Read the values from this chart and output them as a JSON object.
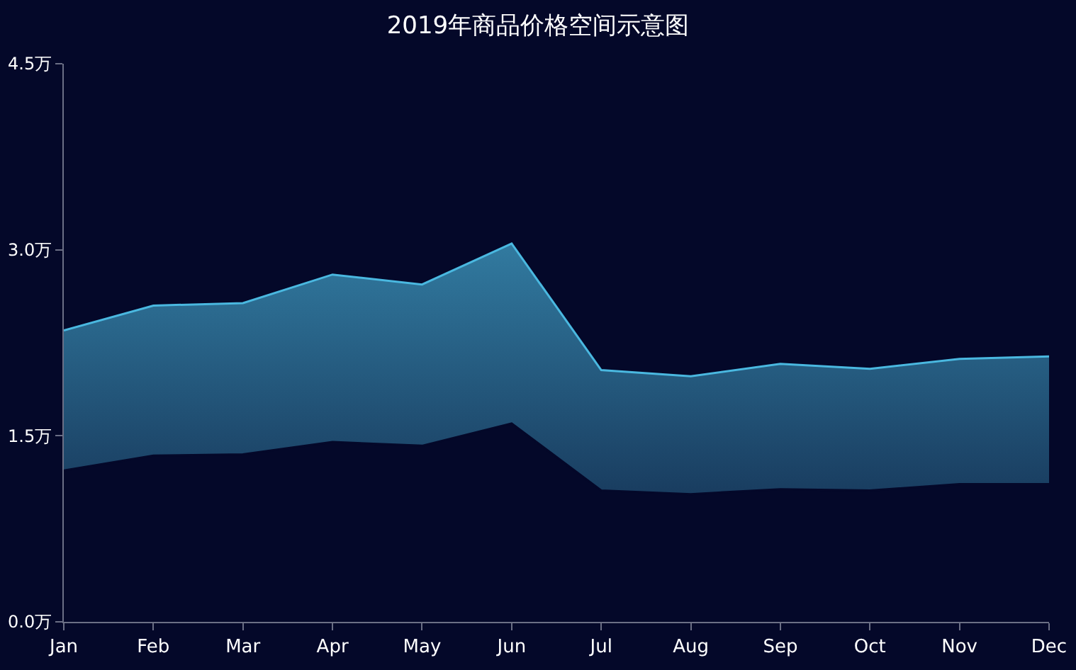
{
  "chart_data": {
    "type": "area",
    "title": "2019年商品价格空间示意图",
    "stacked": true,
    "categories": [
      "Jan",
      "Feb",
      "Mar",
      "Apr",
      "May",
      "Jun",
      "Jul",
      "Aug",
      "Sep",
      "Oct",
      "Nov",
      "Dec"
    ],
    "series": [
      {
        "color": "#040829",
        "values": [
          1.22,
          1.34,
          1.35,
          1.45,
          1.42,
          1.6,
          1.06,
          1.03,
          1.07,
          1.06,
          1.11,
          1.11
        ]
      },
      {
        "color": "#4ab8e0",
        "values": [
          1.13,
          1.21,
          1.22,
          1.35,
          1.3,
          1.45,
          0.97,
          0.95,
          1.01,
          0.98,
          1.01,
          1.03
        ]
      }
    ],
    "ylim": [
      0,
      4.5
    ],
    "yticks": [
      {
        "value": 0,
        "label": "0.0万"
      },
      {
        "value": 1.5,
        "label": "1.5万"
      },
      {
        "value": 3,
        "label": "3.0万"
      },
      {
        "value": 4.5,
        "label": "4.5万"
      }
    ],
    "grid": false
  }
}
